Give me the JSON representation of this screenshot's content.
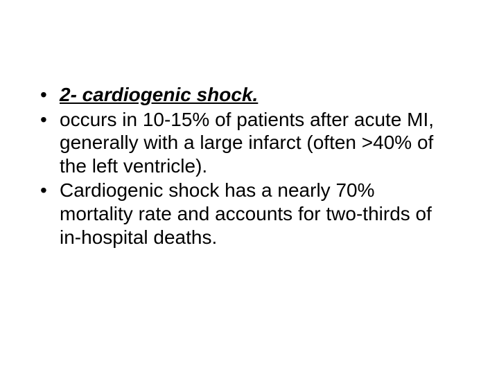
{
  "slide": {
    "bullets": [
      {
        "text": "2- cardiogenic shock.",
        "style": "heading"
      },
      {
        "text": " occurs in 10-15% of patients after acute MI, generally with a large infarct (often >40% of the left ventricle).",
        "style": "normal"
      },
      {
        "text": "Cardiogenic shock has a nearly 70% mortality rate and accounts for two-thirds of in-hospital deaths.",
        "style": "normal"
      }
    ],
    "colors": {
      "background": "#ffffff",
      "text": "#000000"
    },
    "typography": {
      "font_family": "Arial",
      "font_size_pt": 21,
      "heading_font_weight": "bold",
      "heading_font_style": "italic",
      "heading_text_decoration": "underline"
    }
  }
}
